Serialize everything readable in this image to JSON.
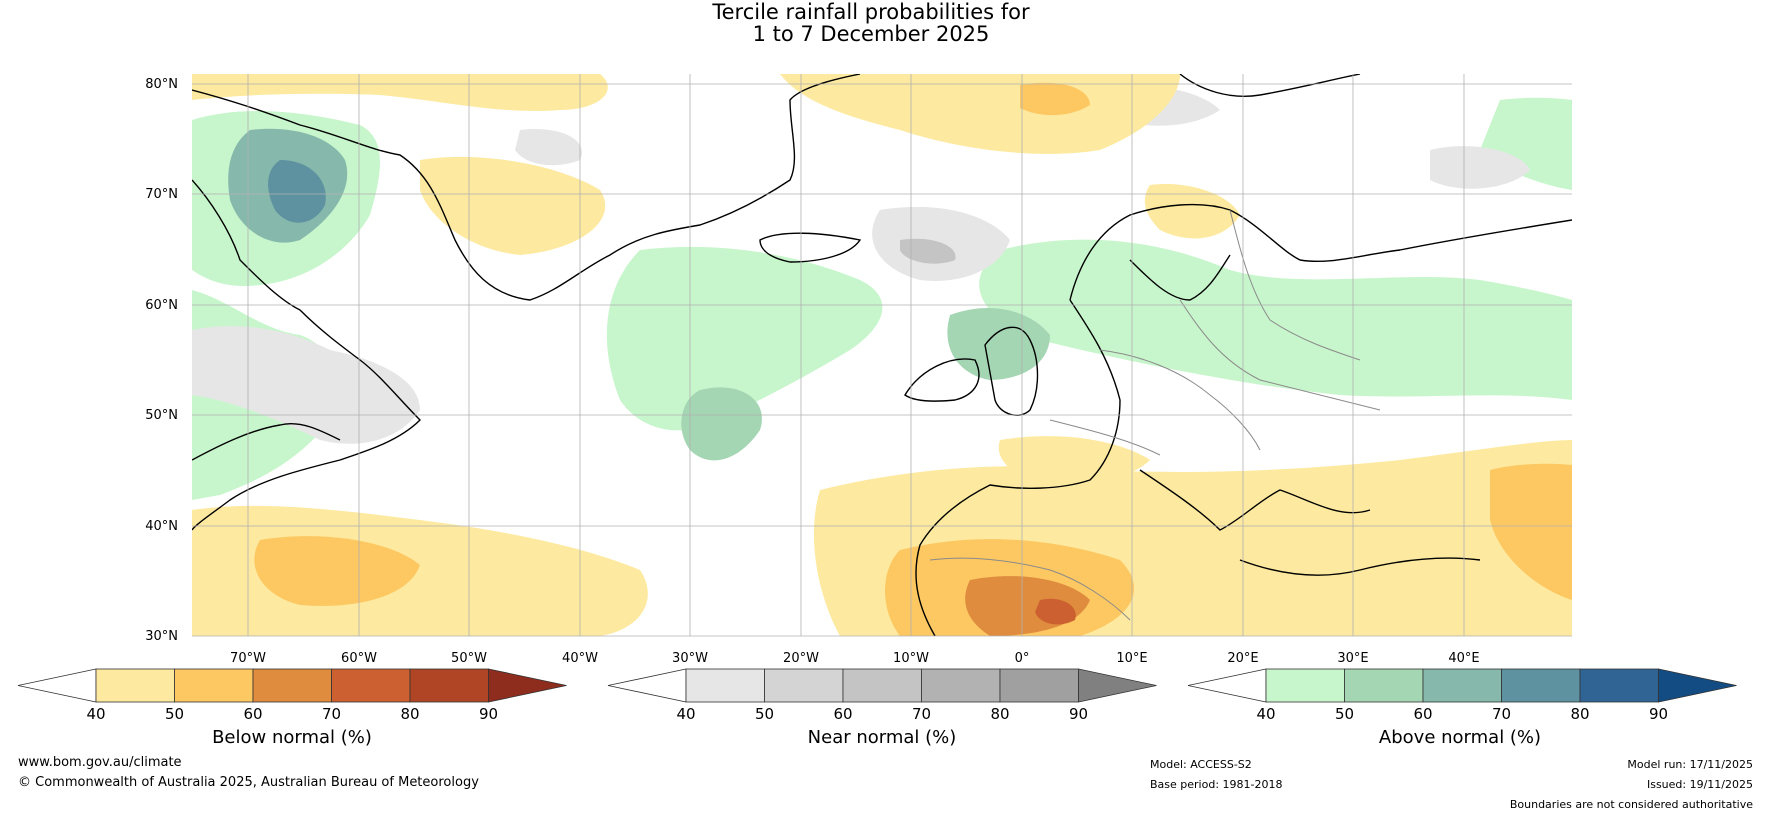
{
  "title": {
    "line1": "Tercile rainfall probabilities for",
    "line2": "1 to 7 December 2025"
  },
  "map": {
    "lat_labels": [
      "80°N",
      "70°N",
      "60°N",
      "50°N",
      "40°N",
      "30°N"
    ],
    "lon_labels": [
      "70°W",
      "60°W",
      "50°W",
      "40°W",
      "30°W",
      "20°W",
      "10°W",
      "0°",
      "10°E",
      "20°E",
      "30°E",
      "40°E"
    ]
  },
  "colorbars": [
    {
      "id": "below",
      "label": "Below normal (%)",
      "ticks": [
        "40",
        "50",
        "60",
        "70",
        "80",
        "90"
      ],
      "colors": [
        "#ffffff",
        "#fdeaa0",
        "#fdc862",
        "#df8c3e",
        "#cc6030",
        "#b04525",
        "#8e2c1e"
      ]
    },
    {
      "id": "near",
      "label": "Near normal (%)",
      "ticks": [
        "40",
        "50",
        "60",
        "70",
        "80",
        "90"
      ],
      "colors": [
        "#ffffff",
        "#e6e6e6",
        "#d4d4d4",
        "#c4c4c4",
        "#b2b2b2",
        "#a0a0a0",
        "#808080"
      ]
    },
    {
      "id": "above",
      "label": "Above normal (%)",
      "ticks": [
        "40",
        "50",
        "60",
        "70",
        "80",
        "90"
      ],
      "colors": [
        "#ffffff",
        "#c8f6cc",
        "#a5d6b4",
        "#86b9ac",
        "#5e92a0",
        "#2f6495",
        "#134c82"
      ]
    }
  ],
  "footer": {
    "website": "www.bom.gov.au/climate",
    "copyright": "© Commonwealth of Australia 2025, Australian Bureau of Meteorology",
    "model": "Model: ACCESS-S2",
    "base_period": "Base period: 1981-2018",
    "model_run": "Model run: 17/11/2025",
    "issued": "Issued: 19/11/2025",
    "disclaimer": "Boundaries are not considered authoritative"
  },
  "style": {
    "gridline": "#b0b0b0",
    "coastline": "#000000",
    "border": "#8a8a8a"
  }
}
